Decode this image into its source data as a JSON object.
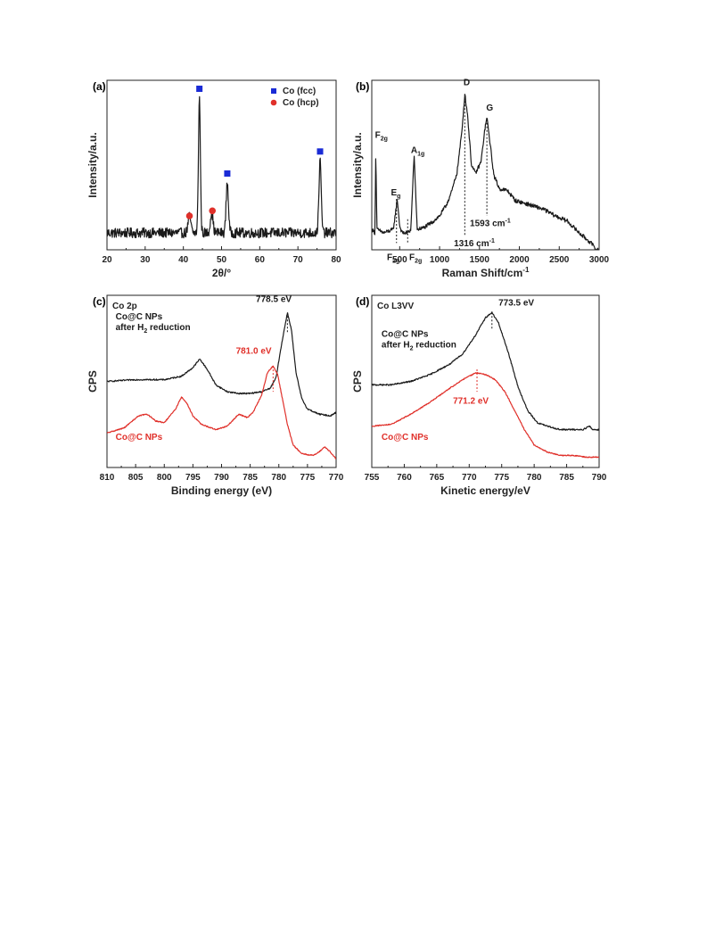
{
  "colors": {
    "black": "#1a1a1a",
    "red": "#e0302a",
    "blue": "#1a2bd6"
  },
  "chart_data": [
    {
      "id": "a",
      "panel": "(a)",
      "type": "line",
      "xlabel": "2θ/°",
      "ylabel": "Intensity/a.u.",
      "xlim": [
        20,
        80
      ],
      "ylim": [
        0,
        100
      ],
      "xticks": [
        20,
        30,
        40,
        50,
        60,
        70,
        80
      ],
      "yticks_shown": false,
      "series": [
        {
          "color": "#1a1a1a",
          "peaks": [
            {
              "x": 41.6,
              "height": 10,
              "width": 0.35
            },
            {
              "x": 44.2,
              "height": 80,
              "width": 0.25
            },
            {
              "x": 47.4,
              "height": 12,
              "width": 0.35
            },
            {
              "x": 51.5,
              "height": 30,
              "width": 0.3
            },
            {
              "x": 75.8,
              "height": 42,
              "width": 0.3
            }
          ],
          "baseline": 10,
          "noise": 3
        }
      ],
      "markers": [
        {
          "x": 44.2,
          "y": 95,
          "shape": "square",
          "color": "#1a2bd6"
        },
        {
          "x": 51.5,
          "y": 45,
          "shape": "square",
          "color": "#1a2bd6"
        },
        {
          "x": 75.8,
          "y": 58,
          "shape": "square",
          "color": "#1a2bd6"
        },
        {
          "x": 41.6,
          "y": 20,
          "shape": "circle",
          "color": "#e0302a"
        },
        {
          "x": 47.6,
          "y": 23,
          "shape": "circle",
          "color": "#e0302a"
        }
      ],
      "legend": [
        {
          "label": "Co (fcc)",
          "shape": "square",
          "color": "#1a2bd6"
        },
        {
          "label": "Co (hcp)",
          "shape": "circle",
          "color": "#e0302a"
        }
      ],
      "legend_position": "top-right"
    },
    {
      "id": "b",
      "panel": "(b)",
      "type": "line",
      "xlabel": "Raman Shift/cm",
      "xlabel_sup": "-1",
      "ylabel": "Intensity/a.u.",
      "xlim": [
        150,
        3000
      ],
      "ylim": [
        0,
        100
      ],
      "xticks": [
        500,
        1000,
        1500,
        2000,
        2500,
        3000
      ],
      "yticks_shown": false,
      "series": [
        {
          "color": "#1a1a1a",
          "points": [
            [
              150,
              12
            ],
            [
              190,
              10
            ],
            [
              200,
              58
            ],
            [
              215,
              12
            ],
            [
              300,
              10
            ],
            [
              420,
              12
            ],
            [
              470,
              30
            ],
            [
              500,
              14
            ],
            [
              530,
              10
            ],
            [
              600,
              10
            ],
            [
              640,
              12
            ],
            [
              680,
              56
            ],
            [
              720,
              12
            ],
            [
              800,
              13
            ],
            [
              900,
              16
            ],
            [
              1000,
              20
            ],
            [
              1080,
              26
            ],
            [
              1150,
              34
            ],
            [
              1220,
              46
            ],
            [
              1280,
              70
            ],
            [
              1316,
              92
            ],
            [
              1350,
              80
            ],
            [
              1400,
              50
            ],
            [
              1450,
              45
            ],
            [
              1520,
              52
            ],
            [
              1570,
              72
            ],
            [
              1593,
              78
            ],
            [
              1620,
              68
            ],
            [
              1680,
              44
            ],
            [
              1750,
              36
            ],
            [
              1850,
              35
            ],
            [
              1950,
              29
            ],
            [
              2100,
              27
            ],
            [
              2300,
              24
            ],
            [
              2450,
              20
            ],
            [
              2600,
              17
            ],
            [
              2750,
              10
            ],
            [
              2900,
              4
            ],
            [
              2960,
              0
            ]
          ],
          "noise": 1.2
        }
      ],
      "guides": [
        {
          "x": 460,
          "y_top": 30,
          "y_bottom": 4
        },
        {
          "x": 600,
          "y_top": 18,
          "y_bottom": 4
        },
        {
          "x": 1316,
          "y_top": 92,
          "y_bottom": 8
        },
        {
          "x": 1593,
          "y_top": 77,
          "y_bottom": 20
        }
      ],
      "peak_labels": [
        {
          "text": "F",
          "sub": "2g",
          "x": 190,
          "y": 66
        },
        {
          "text": "E",
          "sub": "g",
          "x": 390,
          "y": 32
        },
        {
          "text": "A",
          "sub": "1g",
          "x": 640,
          "y": 57
        },
        {
          "text": "F",
          "sub": "2g",
          "x": 340,
          "y": -6
        },
        {
          "text": "F",
          "sub": "2g",
          "x": 620,
          "y": -6
        },
        {
          "text": "D",
          "x": 1300,
          "y": 97
        },
        {
          "text": "G",
          "x": 1585,
          "y": 82
        },
        {
          "text": "1593 cm",
          "sup": "-1",
          "x": 1380,
          "y": 14
        },
        {
          "text": "1316 cm",
          "sup": "-1",
          "x": 1180,
          "y": 2
        }
      ]
    },
    {
      "id": "c",
      "panel": "(c)",
      "type": "line",
      "title": "Co 2p",
      "xlabel": "Binding energy (eV)",
      "ylabel": "CPS",
      "xlim": [
        810,
        770
      ],
      "ylim": [
        0,
        100
      ],
      "xticks": [
        810,
        805,
        800,
        795,
        790,
        785,
        780,
        775,
        770
      ],
      "yticks_shown": false,
      "series": [
        {
          "name": "Co@C NPs after H2 reduction",
          "label_lines": [
            "Co@C NPs",
            "after H",
            "reduction"
          ],
          "label_sub": "2",
          "color": "#1a1a1a",
          "points": [
            [
              810,
              50
            ],
            [
              805,
              51
            ],
            [
              800,
              51
            ],
            [
              797,
              53
            ],
            [
              795,
              58
            ],
            [
              793.8,
              63
            ],
            [
              792.5,
              57
            ],
            [
              791,
              48
            ],
            [
              789,
              44
            ],
            [
              787,
              43
            ],
            [
              785,
              43
            ],
            [
              783,
              44
            ],
            [
              781.5,
              46
            ],
            [
              780.5,
              52
            ],
            [
              779.5,
              72
            ],
            [
              778.5,
              90
            ],
            [
              777.8,
              80
            ],
            [
              777,
              55
            ],
            [
              776,
              40
            ],
            [
              775,
              34
            ],
            [
              773,
              31
            ],
            [
              771,
              30
            ],
            [
              770,
              32
            ]
          ],
          "noise": 0.4
        },
        {
          "name": "Co@C NPs",
          "color": "#e0302a",
          "points": [
            [
              810,
              20
            ],
            [
              807,
              23
            ],
            [
              804.5,
              30
            ],
            [
              803,
              31
            ],
            [
              801.5,
              27
            ],
            [
              800,
              26
            ],
            [
              798,
              34
            ],
            [
              797,
              41
            ],
            [
              796,
              37
            ],
            [
              795,
              30
            ],
            [
              793.5,
              25
            ],
            [
              791,
              22
            ],
            [
              789,
              24
            ],
            [
              787,
              31
            ],
            [
              785.5,
              29
            ],
            [
              784.5,
              32
            ],
            [
              783,
              42
            ],
            [
              782,
              55
            ],
            [
              781,
              59
            ],
            [
              780.2,
              54
            ],
            [
              779.5,
              42
            ],
            [
              778.5,
              25
            ],
            [
              777.5,
              13
            ],
            [
              776,
              8
            ],
            [
              774,
              7
            ],
            [
              773,
              9
            ],
            [
              772,
              12
            ],
            [
              771,
              9
            ],
            [
              770,
              5
            ]
          ],
          "noise": 0.3
        }
      ],
      "guides": [
        {
          "x": 778.5,
          "y_top": 90,
          "y_bottom": 78,
          "color": "#1a1a1a"
        },
        {
          "x": 781.0,
          "y_top": 59,
          "y_bottom": 44,
          "color": "#e0302a"
        }
      ],
      "annotations": [
        {
          "text": "778.5 eV",
          "x": 784,
          "y": 96,
          "color": "#1a1a1a"
        },
        {
          "text": "781.0 eV",
          "x": 787.5,
          "y": 66,
          "color": "#e0302a"
        }
      ],
      "series_labels_pos": [
        {
          "x": 808.5,
          "y": 86
        },
        {
          "x": 808.5,
          "y": 16
        }
      ]
    },
    {
      "id": "d",
      "panel": "(d)",
      "type": "line",
      "title": "Co L3VV",
      "xlabel": "Kinetic energy/eV",
      "ylabel": "CPS",
      "xlim": [
        755,
        790
      ],
      "ylim": [
        0,
        100
      ],
      "xticks": [
        755,
        760,
        765,
        770,
        775,
        780,
        785,
        790
      ],
      "yticks_shown": false,
      "series": [
        {
          "name": "Co@C NPs after H2 reduction",
          "label_lines": [
            "Co@C NPs",
            "after H",
            "reduction"
          ],
          "label_sub": "2",
          "color": "#1a1a1a",
          "points": [
            [
              755,
              48
            ],
            [
              758,
              48
            ],
            [
              761,
              50
            ],
            [
              764,
              54
            ],
            [
              767,
              60
            ],
            [
              769,
              66
            ],
            [
              771,
              77
            ],
            [
              772.5,
              87
            ],
            [
              773.5,
              90
            ],
            [
              774.5,
              84
            ],
            [
              776,
              67
            ],
            [
              777.5,
              47
            ],
            [
              779,
              33
            ],
            [
              780.5,
              26
            ],
            [
              782,
              24
            ],
            [
              784,
              22
            ],
            [
              786,
              22
            ],
            [
              787.5,
              22
            ],
            [
              788.5,
              24
            ],
            [
              789,
              22
            ]
          ],
          "noise": 0.4
        },
        {
          "name": "Co@C NPs",
          "color": "#e0302a",
          "points": [
            [
              755,
              24
            ],
            [
              758,
              25
            ],
            [
              761,
              31
            ],
            [
              764,
              38
            ],
            [
              767,
              46
            ],
            [
              769,
              51
            ],
            [
              771,
              55
            ],
            [
              772.5,
              54
            ],
            [
              774,
              51
            ],
            [
              775.5,
              44
            ],
            [
              777,
              33
            ],
            [
              778.5,
              22
            ],
            [
              780,
              13
            ],
            [
              782,
              9
            ],
            [
              784,
              7
            ],
            [
              786,
              7
            ],
            [
              788,
              6
            ]
          ],
          "noise": 0.3
        }
      ],
      "guides": [
        {
          "x": 773.5,
          "y_top": 90,
          "y_bottom": 80,
          "color": "#1a1a1a"
        },
        {
          "x": 771.2,
          "y_top": 57,
          "y_bottom": 44,
          "color": "#e0302a"
        }
      ],
      "annotations": [
        {
          "text": "773.5 eV",
          "x": 774.5,
          "y": 94,
          "color": "#1a1a1a"
        },
        {
          "text": "771.2 eV",
          "x": 767.5,
          "y": 37,
          "color": "#e0302a"
        }
      ],
      "series_labels_pos": [
        {
          "x": 756.5,
          "y": 76
        },
        {
          "x": 756.5,
          "y": 16
        }
      ]
    }
  ]
}
